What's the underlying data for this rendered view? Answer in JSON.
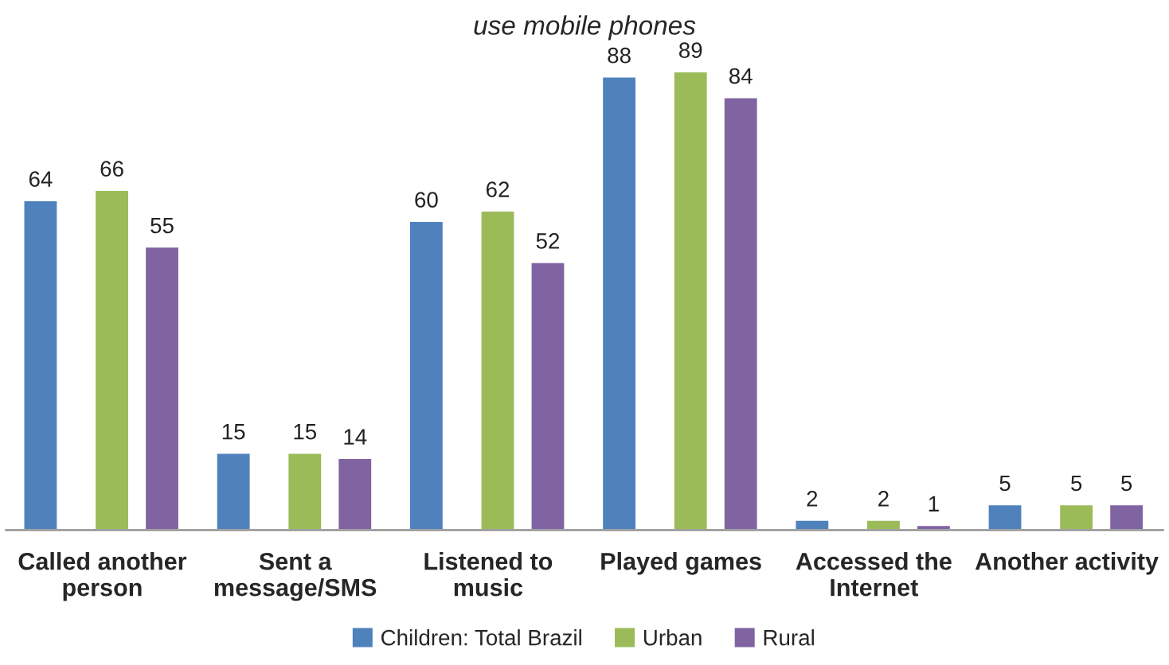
{
  "chart_data": {
    "type": "bar",
    "title": "use mobile phones",
    "categories": [
      "Called another\nperson",
      "Sent a\nmessage/SMS",
      "Listened to\nmusic",
      "Played games",
      "Accessed the\nInternet",
      "Another activity"
    ],
    "series": [
      {
        "name": "Children: Total Brazil",
        "color": "#4f81bd",
        "values": [
          64,
          15,
          60,
          88,
          2,
          5
        ]
      },
      {
        "name": "Urban",
        "color": "#9bbb59",
        "values": [
          66,
          15,
          62,
          89,
          2,
          5
        ]
      },
      {
        "name": "Rural",
        "color": "#8064a2",
        "values": [
          55,
          14,
          52,
          84,
          1,
          5
        ]
      }
    ],
    "data_labels": true,
    "legend": "bottom",
    "grid": false,
    "tick_labels": "x"
  }
}
